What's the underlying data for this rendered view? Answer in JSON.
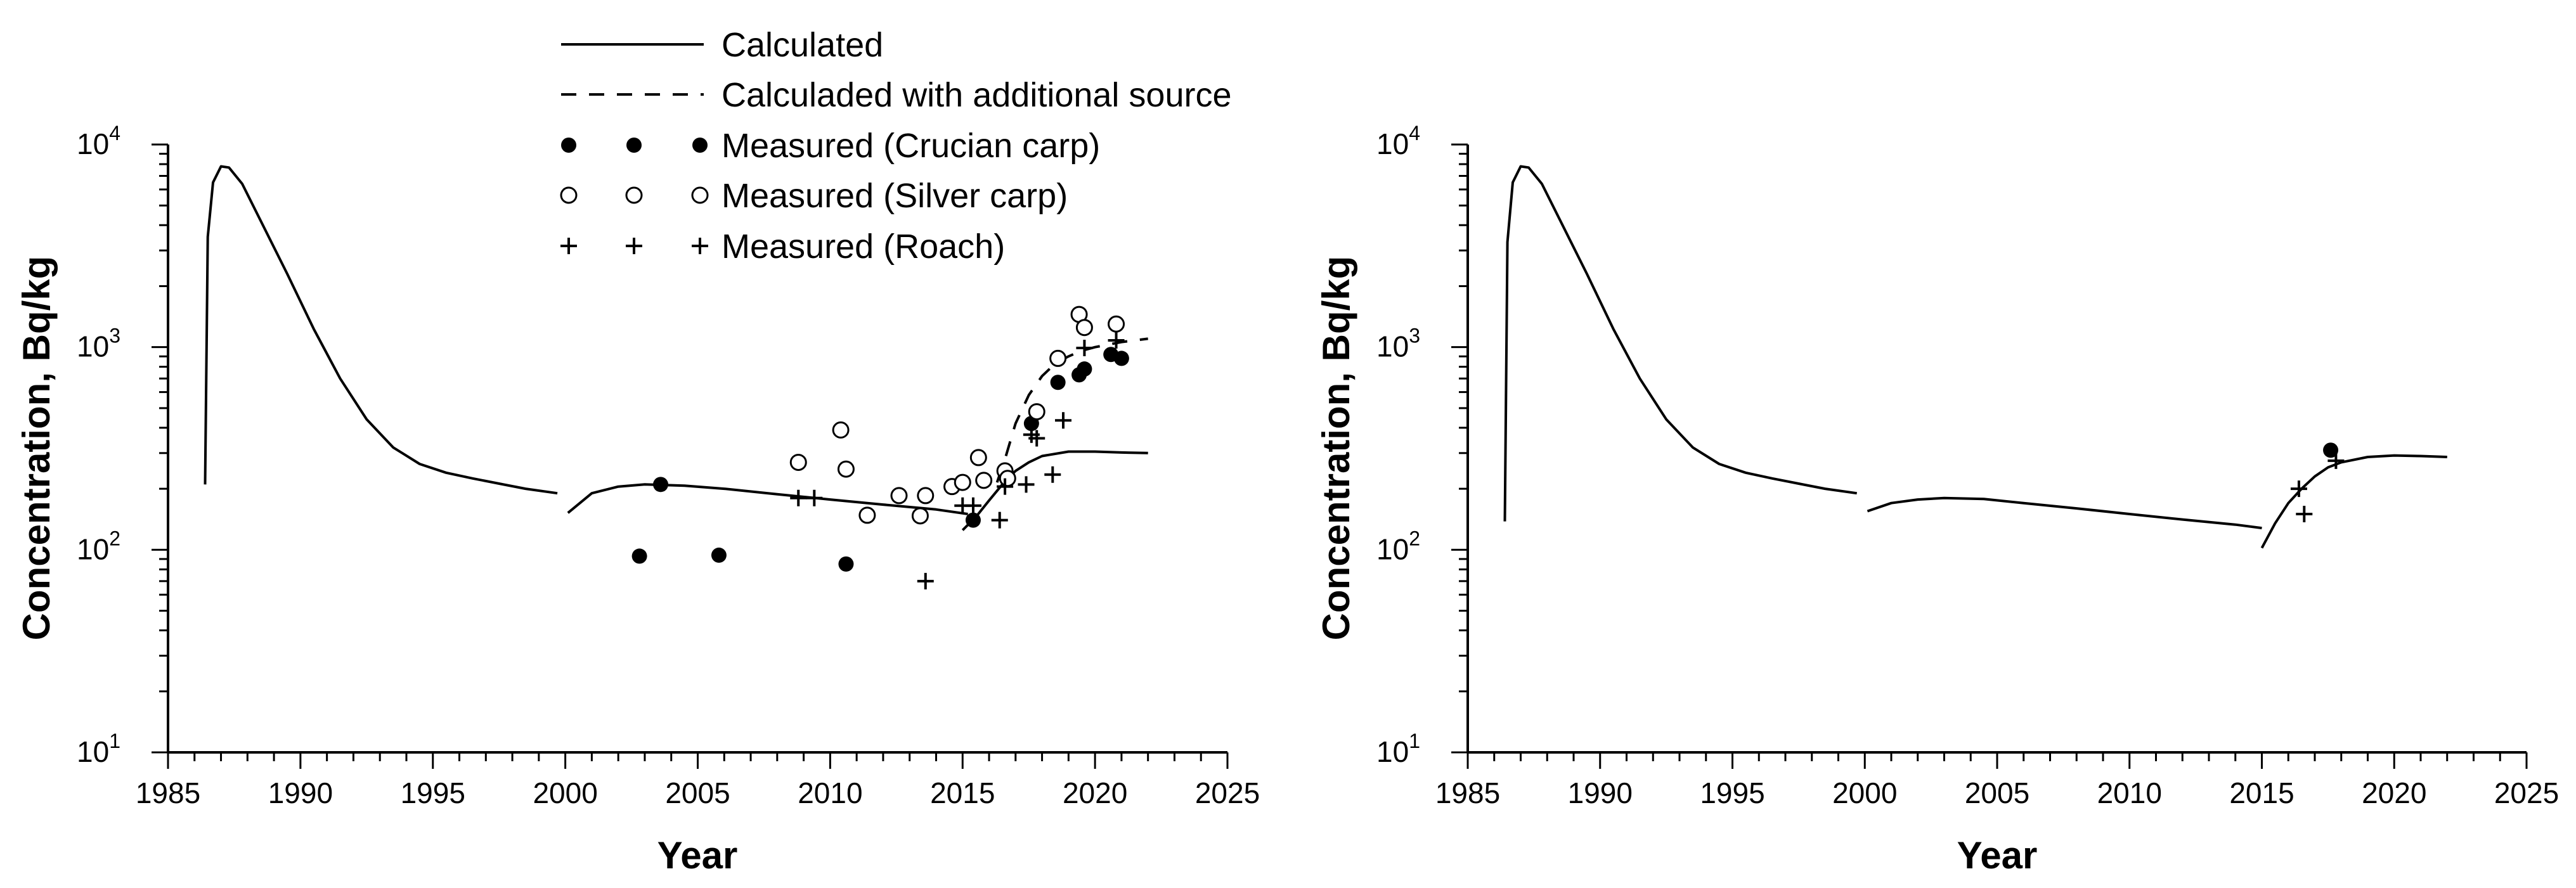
{
  "chart_data": [
    {
      "type": "scatter",
      "panel": "left",
      "xlabel": "Year",
      "ylabel": "Concentration, Bq/kg",
      "xlim": [
        1985,
        2025
      ],
      "ylim": [
        10,
        10000
      ],
      "yscale": "log",
      "x_ticks": [
        "1985",
        "1990",
        "1995",
        "2000",
        "2005",
        "2010",
        "2015",
        "2020",
        "2025"
      ],
      "y_ticks": [
        {
          "base": "10",
          "exp": "1"
        },
        {
          "base": "10",
          "exp": "2"
        },
        {
          "base": "10",
          "exp": "3"
        },
        {
          "base": "10",
          "exp": "4"
        }
      ],
      "legend": {
        "placement": "top-center",
        "entries": [
          {
            "label": "Calculated",
            "style": "solid-line"
          },
          {
            "label": "Calculaded with additional source",
            "style": "dashed-line"
          },
          {
            "label": "Measured (Crucian carp)",
            "style": "filled-circle"
          },
          {
            "label": "Measured (Silver carp)",
            "style": "open-circle"
          },
          {
            "label": "Measured (Roach)",
            "style": "plus"
          }
        ]
      },
      "series": [
        {
          "name": "Calculated",
          "kind": "line",
          "style": "solid",
          "x": [
            1986.4,
            1986.5,
            1986.7,
            1987.0,
            1987.3,
            1987.8,
            1988.5,
            1989.5,
            1990.5,
            1991.5,
            1992.5,
            1993.5,
            1994.5,
            1995.5,
            1996.5,
            1997.5,
            1998.5,
            1999.7
          ],
          "y": [
            210,
            3500,
            6500,
            7800,
            7700,
            6400,
            4200,
            2300,
            1230,
            700,
            440,
            320,
            265,
            240,
            225,
            212,
            200,
            190
          ]
        },
        {
          "name": "Calculated",
          "kind": "line",
          "style": "solid",
          "x": [
            2000.1,
            2001,
            2002,
            2003,
            2004.5,
            2006,
            2008,
            2010,
            2012,
            2014,
            2015.2
          ],
          "y": [
            152,
            190,
            205,
            210,
            207,
            200,
            188,
            177,
            167,
            158,
            150
          ]
        },
        {
          "name": "Calculated",
          "kind": "line",
          "style": "solid",
          "x": [
            2015.0,
            2015.5,
            2016,
            2016.5,
            2017,
            2017.5,
            2018,
            2019,
            2020,
            2021,
            2022
          ],
          "y": [
            125,
            145,
            175,
            210,
            245,
            270,
            290,
            305,
            305,
            302,
            300
          ]
        },
        {
          "name": "Calculaded with additional source",
          "kind": "line",
          "style": "dashed",
          "x": [
            2016.3,
            2016.6,
            2017,
            2017.5,
            2018,
            2018.5,
            2019,
            2019.5,
            2020,
            2021,
            2022
          ],
          "y": [
            215,
            280,
            420,
            580,
            720,
            830,
            900,
            960,
            1000,
            1060,
            1100
          ]
        },
        {
          "name": "Measured (Crucian carp)",
          "kind": "points",
          "marker": "filled-circle",
          "x": [
            2002.8,
            2003.6,
            2005.8,
            2010.6,
            2015.4,
            2017.6,
            2018.6,
            2019.4,
            2019.6,
            2020.6,
            2021.0
          ],
          "y": [
            93,
            210,
            94,
            85,
            140,
            420,
            670,
            730,
            780,
            920,
            880
          ]
        },
        {
          "name": "Measured (Silver carp)",
          "kind": "points",
          "marker": "open-circle",
          "x": [
            2008.8,
            2010.4,
            2010.6,
            2011.4,
            2012.6,
            2013.4,
            2013.6,
            2014.6,
            2015.0,
            2015.6,
            2015.8,
            2016.6,
            2016.7,
            2017.8,
            2018.6,
            2019.4,
            2019.6,
            2020.8
          ],
          "y": [
            270,
            390,
            250,
            148,
            185,
            147,
            185,
            205,
            215,
            285,
            220,
            245,
            225,
            480,
            880,
            1450,
            1250,
            1300
          ]
        },
        {
          "name": "Measured (Roach)",
          "kind": "points",
          "marker": "plus",
          "x": [
            2008.8,
            2009.4,
            2013.6,
            2015.0,
            2015.4,
            2016.4,
            2016.6,
            2017.4,
            2017.6,
            2017.8,
            2018.4,
            2018.8,
            2019.6,
            2020.8
          ],
          "y": [
            180,
            180,
            70,
            165,
            165,
            140,
            205,
            210,
            370,
            355,
            235,
            435,
            990,
            1080
          ]
        }
      ]
    },
    {
      "type": "scatter",
      "panel": "right",
      "xlabel": "Year",
      "ylabel": "Concentration, Bq/kg",
      "xlim": [
        1985,
        2025
      ],
      "ylim": [
        10,
        10000
      ],
      "yscale": "log",
      "x_ticks": [
        "1985",
        "1990",
        "1995",
        "2000",
        "2005",
        "2010",
        "2015",
        "2020",
        "2025"
      ],
      "y_ticks": [
        {
          "base": "10",
          "exp": "1"
        },
        {
          "base": "10",
          "exp": "2"
        },
        {
          "base": "10",
          "exp": "3"
        },
        {
          "base": "10",
          "exp": "4"
        }
      ],
      "series": [
        {
          "name": "Calculated",
          "kind": "line",
          "style": "solid",
          "x": [
            1986.4,
            1986.5,
            1986.7,
            1987.0,
            1987.3,
            1987.8,
            1988.5,
            1989.5,
            1990.5,
            1991.5,
            1992.5,
            1993.5,
            1994.5,
            1995.5,
            1996.5,
            1997.5,
            1998.5,
            1999.7
          ],
          "y": [
            138,
            3300,
            6500,
            7800,
            7700,
            6400,
            4200,
            2300,
            1230,
            700,
            440,
            320,
            265,
            240,
            225,
            212,
            200,
            190
          ]
        },
        {
          "name": "Calculated",
          "kind": "line",
          "style": "solid",
          "x": [
            2000.1,
            2001,
            2002,
            2003,
            2004.5,
            2006,
            2008,
            2010,
            2012,
            2014,
            2015.0
          ],
          "y": [
            155,
            170,
            177,
            180,
            178,
            170,
            160,
            150,
            141,
            133,
            128
          ]
        },
        {
          "name": "Calculated",
          "kind": "line",
          "style": "solid",
          "x": [
            2015.0,
            2015.5,
            2016,
            2016.5,
            2017,
            2017.5,
            2018,
            2019,
            2020,
            2021,
            2022
          ],
          "y": [
            102,
            135,
            170,
            200,
            230,
            255,
            270,
            287,
            292,
            290,
            287
          ]
        },
        {
          "name": "Measured (Crucian carp)",
          "kind": "points",
          "marker": "filled-circle",
          "x": [
            2017.6
          ],
          "y": [
            310
          ]
        },
        {
          "name": "Measured (Roach)",
          "kind": "points",
          "marker": "plus",
          "x": [
            2016.4,
            2016.6,
            2017.8
          ],
          "y": [
            200,
            150,
            275
          ]
        }
      ]
    }
  ]
}
